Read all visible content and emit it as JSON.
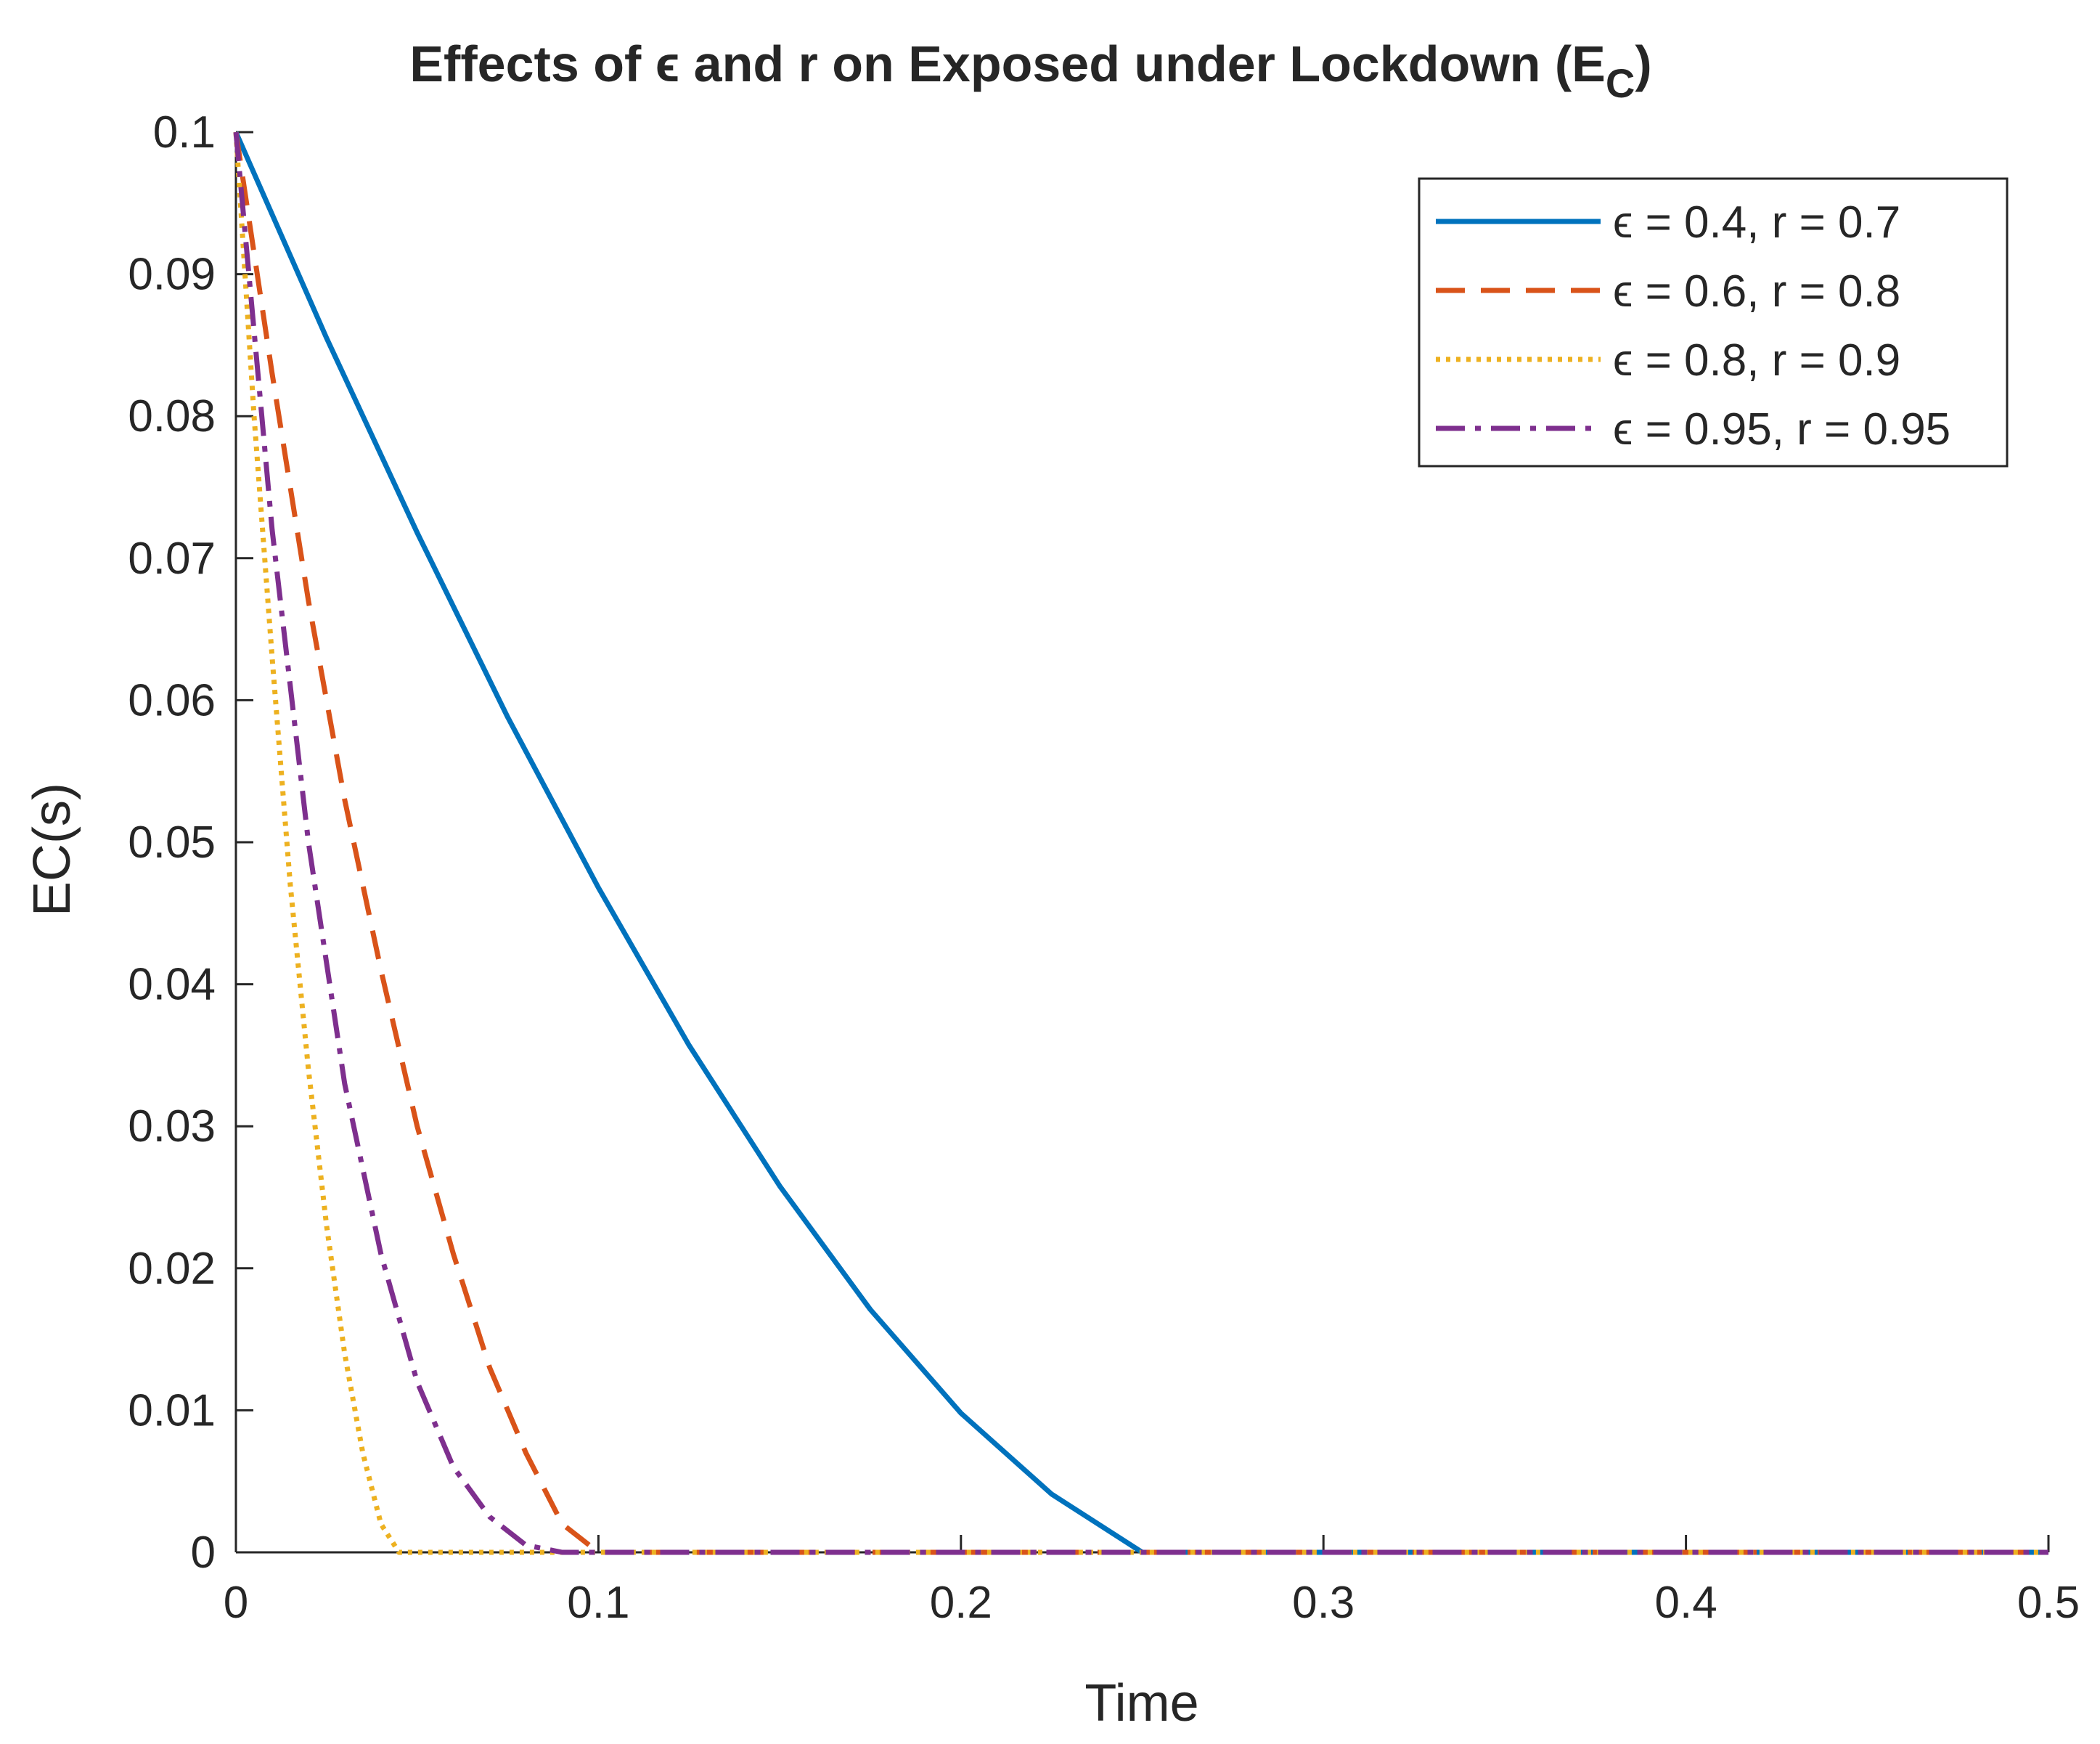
{
  "chart_data": {
    "type": "line",
    "title": "Effects of ϵ and r on Exposed under Lockdown (E",
    "title_subscript": "C",
    "title_close": ")",
    "xlabel": "Time",
    "ylabel": "EC(s)",
    "xlim": [
      0,
      0.5
    ],
    "ylim": [
      0,
      0.1
    ],
    "xticks": [
      0,
      0.1,
      0.2,
      0.3,
      0.4,
      0.5
    ],
    "xtick_labels": [
      "0",
      "0.1",
      "0.2",
      "0.3",
      "0.4",
      "0.5"
    ],
    "yticks": [
      0,
      0.01,
      0.02,
      0.03,
      0.04,
      0.05,
      0.06,
      0.07,
      0.08,
      0.09,
      0.1
    ],
    "ytick_labels": [
      "0",
      "0.01",
      "0.02",
      "0.03",
      "0.04",
      "0.05",
      "0.06",
      "0.07",
      "0.08",
      "0.09",
      "0.1"
    ],
    "grid": false,
    "legend_position": "top-right",
    "series": [
      {
        "name": "ϵ = 0.4, r = 0.7",
        "color": "#0072BD",
        "line_style": "solid",
        "x": [
          0,
          0.025,
          0.05,
          0.075,
          0.1,
          0.125,
          0.15,
          0.175,
          0.2,
          0.225,
          0.25,
          0.5
        ],
        "y": [
          0.1,
          0.0855,
          0.0718,
          0.0588,
          0.0468,
          0.0357,
          0.0258,
          0.0171,
          0.0098,
          0.0041,
          0,
          0
        ]
      },
      {
        "name": "ϵ = 0.6, r = 0.8",
        "color": "#D95319",
        "line_style": "dashed",
        "x": [
          0,
          0.01,
          0.02,
          0.03,
          0.04,
          0.05,
          0.06,
          0.07,
          0.08,
          0.09,
          0.1,
          0.5
        ],
        "y": [
          0.1,
          0.083,
          0.067,
          0.053,
          0.041,
          0.03,
          0.021,
          0.013,
          0.007,
          0.002,
          0,
          0
        ]
      },
      {
        "name": "ϵ = 0.8, r = 0.9",
        "color": "#EDB120",
        "line_style": "dotted",
        "x": [
          0,
          0.005,
          0.01,
          0.015,
          0.02,
          0.025,
          0.03,
          0.035,
          0.04,
          0.045,
          0.5
        ],
        "y": [
          0.1,
          0.08,
          0.063,
          0.047,
          0.034,
          0.023,
          0.014,
          0.007,
          0.002,
          0,
          0
        ]
      },
      {
        "name": "ϵ = 0.95, r = 0.95",
        "color": "#7E2F8E",
        "line_style": "dashdot",
        "x": [
          0,
          0.005,
          0.01,
          0.02,
          0.03,
          0.04,
          0.05,
          0.06,
          0.07,
          0.08,
          0.09,
          0.5
        ],
        "y": [
          0.1,
          0.086,
          0.072,
          0.05,
          0.033,
          0.021,
          0.012,
          0.006,
          0.0025,
          0.0005,
          0,
          0
        ]
      }
    ]
  }
}
